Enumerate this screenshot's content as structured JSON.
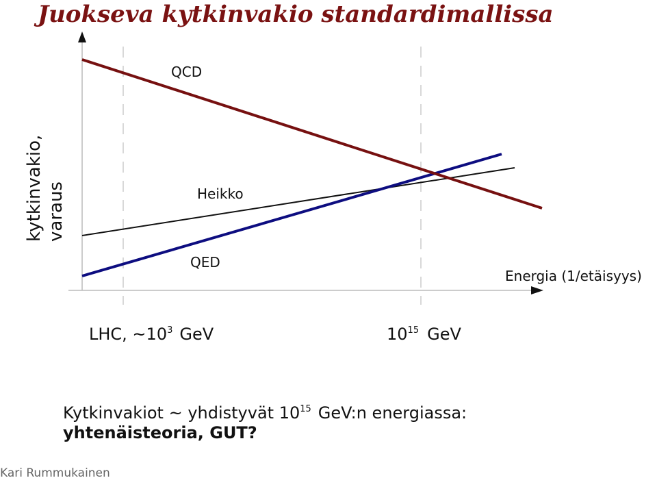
{
  "title": "Juokseva kytkinvakio standardimallissa",
  "axes": {
    "y_label": [
      "kytkinvakio,",
      "varaus"
    ],
    "x_label": "Energia (1/etäisyys)"
  },
  "lines": [
    {
      "label": "QCD"
    },
    {
      "label": "Heikko"
    },
    {
      "label": "QED"
    }
  ],
  "markers": [
    {
      "text": "LHC, ~10",
      "sup": "3",
      "unit": "GeV"
    },
    {
      "text": "10",
      "sup": "15",
      "unit": "GeV"
    }
  ],
  "caption": {
    "before": "Kytkinvakiot ~ yhdistyvät 10",
    "sup": "15",
    "after": "GeV:n energiassa:",
    "bold": "yhtenäisteoria, GUT?"
  },
  "footer": "Kari Rummukainen"
}
